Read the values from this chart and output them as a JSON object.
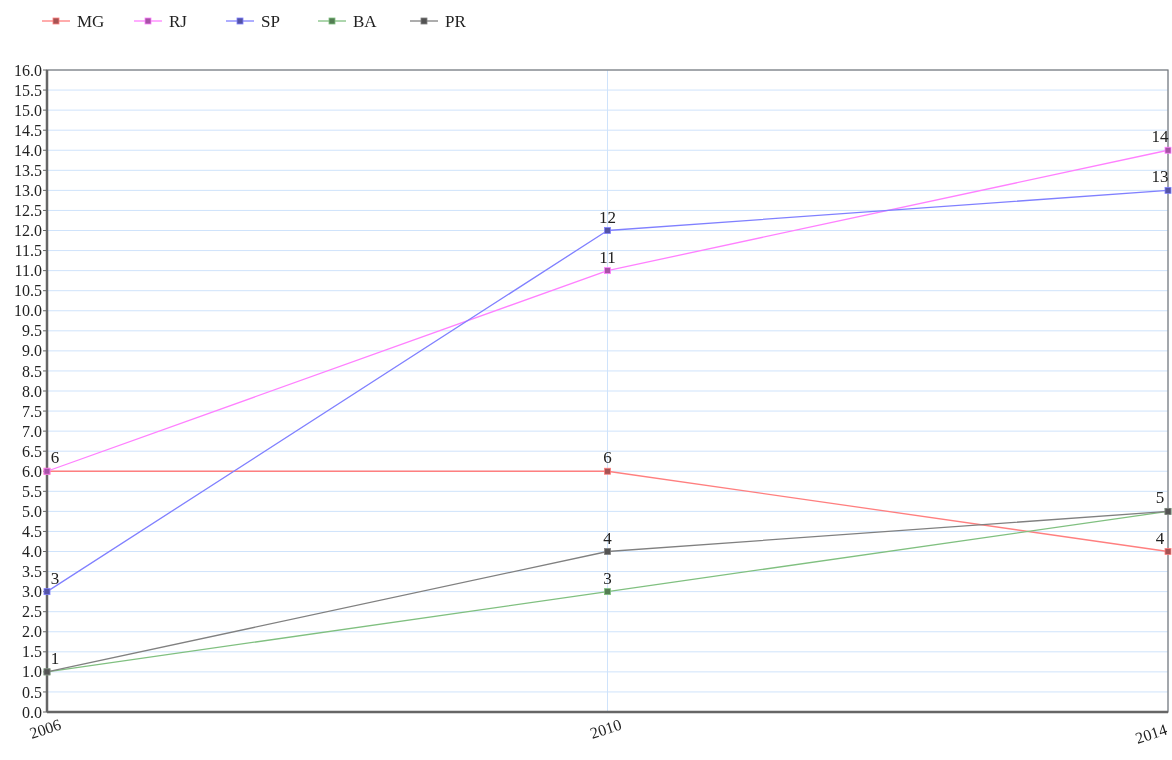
{
  "chart_data": {
    "type": "line",
    "categories": [
      "2006",
      "2010",
      "2014"
    ],
    "series": [
      {
        "name": "MG",
        "color": "#ff7f7f",
        "values": [
          6,
          6,
          4
        ],
        "value_labels": [
          "6",
          "6",
          "4"
        ]
      },
      {
        "name": "RJ",
        "color": "#ff80ff",
        "values": [
          6,
          11,
          14
        ],
        "value_labels": [
          null,
          "11",
          "14"
        ]
      },
      {
        "name": "SP",
        "color": "#8080ff",
        "values": [
          3,
          12,
          13
        ],
        "value_labels": [
          "3",
          "12",
          "13"
        ]
      },
      {
        "name": "BA",
        "color": "#80c080",
        "values": [
          1,
          3,
          5
        ],
        "value_labels": [
          "1",
          "3",
          "5"
        ]
      },
      {
        "name": "PR",
        "color": "#808080",
        "values": [
          1,
          4,
          5
        ],
        "value_labels": [
          null,
          "4",
          null
        ]
      }
    ],
    "ylim": [
      0,
      16
    ],
    "yticks": [
      {
        "value": 0,
        "label": "0.0"
      },
      {
        "value": 0.5,
        "label": "0.5"
      },
      {
        "value": 1,
        "label": "1.0"
      },
      {
        "value": 1.5,
        "label": "1.5"
      },
      {
        "value": 2,
        "label": "2.0"
      },
      {
        "value": 2.5,
        "label": "2.5"
      },
      {
        "value": 3,
        "label": "3.0"
      },
      {
        "value": 3.5,
        "label": "3.5"
      },
      {
        "value": 4,
        "label": "4.0"
      },
      {
        "value": 4.5,
        "label": "4.5"
      },
      {
        "value": 5,
        "label": "5.0"
      },
      {
        "value": 5.5,
        "label": "5.5"
      },
      {
        "value": 6,
        "label": "6.0"
      },
      {
        "value": 6.5,
        "label": "6.5"
      },
      {
        "value": 7,
        "label": "7.0"
      },
      {
        "value": 7.5,
        "label": "7.5"
      },
      {
        "value": 8,
        "label": "8.0"
      },
      {
        "value": 8.5,
        "label": "8.5"
      },
      {
        "value": 9,
        "label": "9.0"
      },
      {
        "value": 9.5,
        "label": "9.5"
      },
      {
        "value": 10,
        "label": "10.0"
      },
      {
        "value": 10.5,
        "label": "10.5"
      },
      {
        "value": 11,
        "label": "11.0"
      },
      {
        "value": 11.5,
        "label": "11.5"
      },
      {
        "value": 12,
        "label": "12.0"
      },
      {
        "value": 12.5,
        "label": "12.5"
      },
      {
        "value": 13,
        "label": "13.0"
      },
      {
        "value": 13.5,
        "label": "13.5"
      },
      {
        "value": 14,
        "label": "14.0"
      },
      {
        "value": 14.5,
        "label": "14.5"
      },
      {
        "value": 15,
        "label": "15.0"
      },
      {
        "value": 15.5,
        "label": "15.5"
      },
      {
        "value": 16,
        "label": "16.0"
      }
    ],
    "grid": true,
    "legend": "top left",
    "marker": "square",
    "line_style": "solid"
  }
}
